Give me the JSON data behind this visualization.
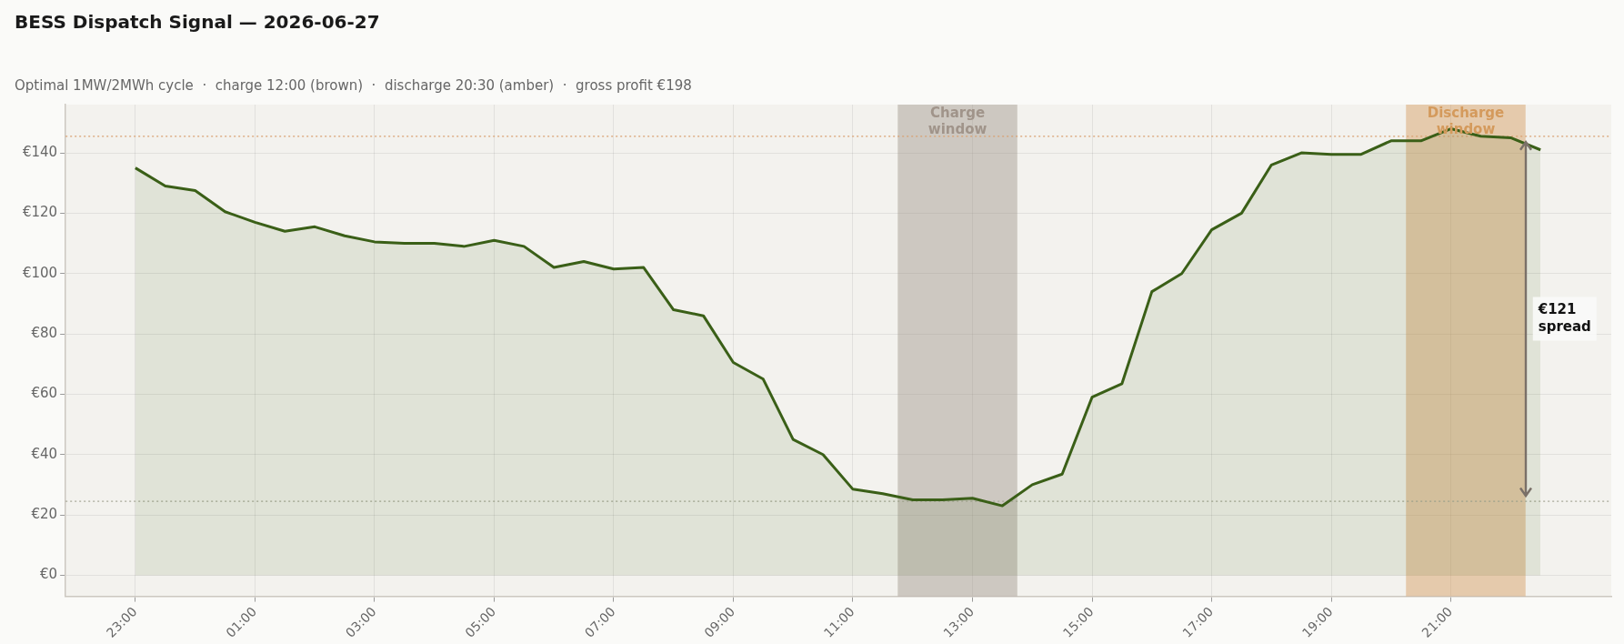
{
  "chart_data": {
    "type": "area",
    "title": "BESS Dispatch Signal — 2026-06-27",
    "subtitle": "Optimal 1MW/2MWh cycle  ·  charge 12:00 (brown)  ·  discharge 20:30 (amber)  ·  gross profit €198",
    "x": [
      "2026-06-26T23:00",
      "2026-06-26T23:30",
      "2026-06-27T00:00",
      "2026-06-27T00:30",
      "2026-06-27T01:00",
      "2026-06-27T01:30",
      "2026-06-27T02:00",
      "2026-06-27T02:30",
      "2026-06-27T03:00",
      "2026-06-27T03:30",
      "2026-06-27T04:00",
      "2026-06-27T04:30",
      "2026-06-27T05:00",
      "2026-06-27T05:30",
      "2026-06-27T06:00",
      "2026-06-27T06:30",
      "2026-06-27T07:00",
      "2026-06-27T07:30",
      "2026-06-27T08:00",
      "2026-06-27T08:30",
      "2026-06-27T09:00",
      "2026-06-27T09:30",
      "2026-06-27T10:00",
      "2026-06-27T10:30",
      "2026-06-27T11:00",
      "2026-06-27T11:30",
      "2026-06-27T12:00",
      "2026-06-27T12:30",
      "2026-06-27T13:00",
      "2026-06-27T13:30",
      "2026-06-27T14:00",
      "2026-06-27T14:30",
      "2026-06-27T15:00",
      "2026-06-27T15:30",
      "2026-06-27T16:00",
      "2026-06-27T16:30",
      "2026-06-27T17:00",
      "2026-06-27T17:30",
      "2026-06-27T18:00",
      "2026-06-27T18:30",
      "2026-06-27T19:00",
      "2026-06-27T19:30",
      "2026-06-27T20:00",
      "2026-06-27T20:30",
      "2026-06-27T21:00",
      "2026-06-27T21:30",
      "2026-06-27T22:00",
      "2026-06-27T22:30"
    ],
    "series": [
      {
        "color": "#3a5f17",
        "values": [
          135,
          129,
          127.5,
          120.5,
          117,
          114,
          115.5,
          112.5,
          110.5,
          110,
          110,
          109,
          111,
          109,
          102,
          104,
          101.5,
          102,
          88,
          86,
          70.5,
          65,
          45,
          40,
          28.5,
          27,
          25,
          25,
          25.5,
          23,
          30,
          33.5,
          59,
          63.5,
          94,
          100,
          114.5,
          120,
          136,
          140,
          139.5,
          139.5,
          144,
          144,
          148,
          145.5,
          145,
          141
        ]
      }
    ],
    "xlim": [
      "2026-06-26T21:50",
      "2026-06-27T23:41"
    ],
    "ylim": [
      -7,
      156
    ],
    "xticks": [
      {
        "value": "2026-06-26T23:00",
        "label": "23:00"
      },
      {
        "value": "2026-06-27T01:00",
        "label": "01:00"
      },
      {
        "value": "2026-06-27T03:00",
        "label": "03:00"
      },
      {
        "value": "2026-06-27T05:00",
        "label": "05:00"
      },
      {
        "value": "2026-06-27T07:00",
        "label": "07:00"
      },
      {
        "value": "2026-06-27T09:00",
        "label": "09:00"
      },
      {
        "value": "2026-06-27T11:00",
        "label": "11:00"
      },
      {
        "value": "2026-06-27T13:00",
        "label": "13:00"
      },
      {
        "value": "2026-06-27T15:00",
        "label": "15:00"
      },
      {
        "value": "2026-06-27T17:00",
        "label": "17:00"
      },
      {
        "value": "2026-06-27T19:00",
        "label": "19:00"
      },
      {
        "value": "2026-06-27T21:00",
        "label": "21:00"
      }
    ],
    "yticks": [
      {
        "value": 0,
        "label": "€0"
      },
      {
        "value": 20,
        "label": "€20"
      },
      {
        "value": 40,
        "label": "€40"
      },
      {
        "value": 60,
        "label": "€60"
      },
      {
        "value": 80,
        "label": "€80"
      },
      {
        "value": 100,
        "label": "€100"
      },
      {
        "value": 120,
        "label": "€120"
      },
      {
        "value": 140,
        "label": "€140"
      }
    ],
    "grid": true,
    "legend": false,
    "marker": "none",
    "line_style": "solid",
    "bands": [
      {
        "axis": "x",
        "from": "2026-06-27T11:45",
        "to": "2026-06-27T13:45",
        "label": "Charge window",
        "color": "#a0948a"
      },
      {
        "axis": "x",
        "from": "2026-06-27T20:15",
        "to": "2026-06-27T22:15",
        "label": "Discharge window",
        "color": "#d49a5c"
      }
    ],
    "ref_lines": [
      {
        "axis": "y",
        "value": 145.5,
        "color": "#d9a070",
        "line_style": "dotted"
      },
      {
        "axis": "y",
        "value": 24.5,
        "color": "#a8a898",
        "line_style": "dotted"
      }
    ],
    "annotations": [
      {
        "text": "€121 spread",
        "x": "2026-06-27T22:15",
        "y": 85
      }
    ]
  }
}
